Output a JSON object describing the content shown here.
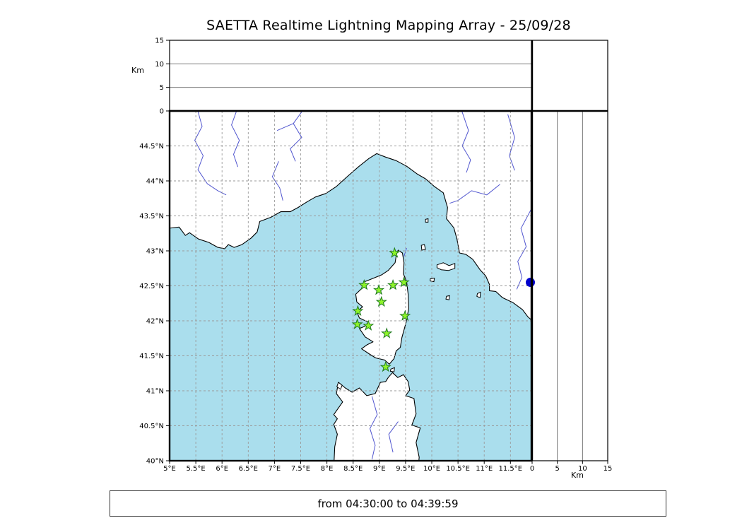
{
  "title": "SAETTA Realtime Lightning Mapping Array - 25/09/28",
  "footer": "from 04:30:00 to 04:39:59",
  "labels": {
    "km_top": "Km",
    "km_bottom": "Km"
  },
  "chart_data": {
    "type": "scatter",
    "title": "SAETTA Realtime Lightning Mapping Array - 25/09/28",
    "time_window": "from 04:30:00 to 04:39:59",
    "layout": "geographic map with empty altitude panels (lon-alt top, lat-alt right)",
    "map": {
      "lon_range": [
        5.0,
        11.9
      ],
      "lat_range": [
        40.0,
        45.0
      ],
      "grid": true,
      "lon_ticks": [
        {
          "v": 5.0,
          "label": "5°E"
        },
        {
          "v": 5.5,
          "label": "5.5°E"
        },
        {
          "v": 6.0,
          "label": "6°E"
        },
        {
          "v": 6.5,
          "label": "6.5°E"
        },
        {
          "v": 7.0,
          "label": "7°E"
        },
        {
          "v": 7.5,
          "label": "7.5°E"
        },
        {
          "v": 8.0,
          "label": "8°E"
        },
        {
          "v": 8.5,
          "label": "8.5°E"
        },
        {
          "v": 9.0,
          "label": "9°E"
        },
        {
          "v": 9.5,
          "label": "9.5°E"
        },
        {
          "v": 10.0,
          "label": "10°E"
        },
        {
          "v": 10.5,
          "label": "10.5°E"
        },
        {
          "v": 11.0,
          "label": "11°E"
        },
        {
          "v": 11.5,
          "label": "11.5°E"
        }
      ],
      "lat_ticks": [
        {
          "v": 40.0,
          "label": "40°N"
        },
        {
          "v": 40.5,
          "label": "40.5°N"
        },
        {
          "v": 41.0,
          "label": "41°N"
        },
        {
          "v": 41.5,
          "label": "41.5°N"
        },
        {
          "v": 42.0,
          "label": "42°N"
        },
        {
          "v": 42.5,
          "label": "42.5°N"
        },
        {
          "v": 43.0,
          "label": "43°N"
        },
        {
          "v": 43.5,
          "label": "43.5°N"
        },
        {
          "v": 44.0,
          "label": "44°N"
        },
        {
          "v": 44.5,
          "label": "44.5°N"
        }
      ],
      "colors": {
        "sea": "#aadeed",
        "land": "#ffffff",
        "coast": "#000000",
        "river": "#5156cf",
        "grid": "#9a9a9a"
      },
      "polygons": {
        "mainland": [
          [
            4.95,
            43.32
          ],
          [
            5.18,
            43.34
          ],
          [
            5.3,
            43.22
          ],
          [
            5.38,
            43.26
          ],
          [
            5.55,
            43.17
          ],
          [
            5.75,
            43.12
          ],
          [
            5.92,
            43.05
          ],
          [
            6.05,
            43.03
          ],
          [
            6.12,
            43.09
          ],
          [
            6.23,
            43.05
          ],
          [
            6.38,
            43.09
          ],
          [
            6.55,
            43.18
          ],
          [
            6.67,
            43.27
          ],
          [
            6.72,
            43.42
          ],
          [
            6.93,
            43.48
          ],
          [
            7.12,
            43.56
          ],
          [
            7.3,
            43.56
          ],
          [
            7.45,
            43.62
          ],
          [
            7.62,
            43.7
          ],
          [
            7.78,
            43.77
          ],
          [
            7.98,
            43.82
          ],
          [
            8.18,
            43.92
          ],
          [
            8.4,
            44.07
          ],
          [
            8.6,
            44.2
          ],
          [
            8.8,
            44.32
          ],
          [
            8.95,
            44.39
          ],
          [
            9.12,
            44.34
          ],
          [
            9.32,
            44.29
          ],
          [
            9.52,
            44.21
          ],
          [
            9.72,
            44.1
          ],
          [
            9.88,
            44.03
          ],
          [
            10.05,
            43.92
          ],
          [
            10.22,
            43.83
          ],
          [
            10.3,
            43.62
          ],
          [
            10.28,
            43.46
          ],
          [
            10.42,
            43.33
          ],
          [
            10.48,
            43.17
          ],
          [
            10.53,
            42.97
          ],
          [
            10.65,
            42.95
          ],
          [
            10.78,
            42.88
          ],
          [
            10.92,
            42.73
          ],
          [
            11.03,
            42.64
          ],
          [
            11.1,
            42.52
          ],
          [
            11.1,
            42.43
          ],
          [
            11.22,
            42.42
          ],
          [
            11.35,
            42.33
          ],
          [
            11.55,
            42.26
          ],
          [
            11.73,
            42.16
          ],
          [
            11.83,
            42.06
          ],
          [
            11.95,
            41.98
          ],
          [
            11.95,
            45.1
          ],
          [
            4.95,
            45.1
          ]
        ],
        "corsica": [
          [
            9.36,
            43.01
          ],
          [
            9.44,
            42.97
          ],
          [
            9.47,
            42.83
          ],
          [
            9.46,
            42.67
          ],
          [
            9.52,
            42.56
          ],
          [
            9.55,
            42.38
          ],
          [
            9.56,
            42.18
          ],
          [
            9.51,
            41.98
          ],
          [
            9.43,
            41.76
          ],
          [
            9.4,
            41.62
          ],
          [
            9.32,
            41.57
          ],
          [
            9.28,
            41.46
          ],
          [
            9.19,
            41.38
          ],
          [
            9.1,
            41.44
          ],
          [
            8.93,
            41.47
          ],
          [
            8.8,
            41.53
          ],
          [
            8.66,
            41.6
          ],
          [
            8.77,
            41.66
          ],
          [
            8.88,
            41.7
          ],
          [
            8.73,
            41.77
          ],
          [
            8.62,
            41.89
          ],
          [
            8.72,
            41.92
          ],
          [
            8.79,
            41.98
          ],
          [
            8.62,
            42.04
          ],
          [
            8.57,
            42.13
          ],
          [
            8.68,
            42.2
          ],
          [
            8.57,
            42.27
          ],
          [
            8.55,
            42.38
          ],
          [
            8.66,
            42.46
          ],
          [
            8.72,
            42.56
          ],
          [
            8.89,
            42.61
          ],
          [
            9.05,
            42.66
          ],
          [
            9.17,
            42.72
          ],
          [
            9.3,
            42.83
          ],
          [
            9.33,
            42.97
          ]
        ],
        "sardinia": [
          [
            8.13,
            39.9
          ],
          [
            8.15,
            40.2
          ],
          [
            8.2,
            40.38
          ],
          [
            8.13,
            40.52
          ],
          [
            8.2,
            40.6
          ],
          [
            8.13,
            40.66
          ],
          [
            8.3,
            40.84
          ],
          [
            8.18,
            40.96
          ],
          [
            8.22,
            41.12
          ],
          [
            8.35,
            41.04
          ],
          [
            8.48,
            40.98
          ],
          [
            8.62,
            41.04
          ],
          [
            8.76,
            40.93
          ],
          [
            8.92,
            40.96
          ],
          [
            9.02,
            41.12
          ],
          [
            9.12,
            41.13
          ],
          [
            9.17,
            41.19
          ],
          [
            9.25,
            41.26
          ],
          [
            9.35,
            41.19
          ],
          [
            9.46,
            41.23
          ],
          [
            9.55,
            41.13
          ],
          [
            9.58,
            41.01
          ],
          [
            9.5,
            40.93
          ],
          [
            9.66,
            40.89
          ],
          [
            9.7,
            40.67
          ],
          [
            9.62,
            40.51
          ],
          [
            9.78,
            40.47
          ],
          [
            9.7,
            40.26
          ],
          [
            9.76,
            40.05
          ],
          [
            9.74,
            39.9
          ]
        ],
        "islands": [
          [
            [
              10.1,
              42.8
            ],
            [
              10.22,
              42.83
            ],
            [
              10.33,
              42.79
            ],
            [
              10.44,
              42.82
            ],
            [
              10.44,
              42.75
            ],
            [
              10.32,
              42.72
            ],
            [
              10.18,
              42.73
            ],
            [
              10.1,
              42.76
            ]
          ],
          [
            [
              9.8,
              43.08
            ],
            [
              9.86,
              43.09
            ],
            [
              9.88,
              43.02
            ],
            [
              9.81,
              43.01
            ]
          ],
          [
            [
              9.88,
              43.45
            ],
            [
              9.93,
              43.46
            ],
            [
              9.93,
              43.41
            ],
            [
              9.88,
              43.41
            ]
          ],
          [
            [
              9.97,
              42.6
            ],
            [
              10.05,
              42.61
            ],
            [
              10.04,
              42.56
            ],
            [
              9.97,
              42.57
            ]
          ],
          [
            [
              10.28,
              42.35
            ],
            [
              10.34,
              42.36
            ],
            [
              10.33,
              42.3
            ],
            [
              10.27,
              42.31
            ]
          ],
          [
            [
              10.87,
              42.39
            ],
            [
              10.93,
              42.41
            ],
            [
              10.92,
              42.33
            ],
            [
              10.86,
              42.35
            ]
          ],
          [
            [
              9.22,
              41.31
            ],
            [
              9.29,
              41.33
            ],
            [
              9.28,
              41.27
            ],
            [
              9.21,
              41.28
            ]
          ],
          [
            [
              8.22,
              41.12
            ],
            [
              8.29,
              41.08
            ],
            [
              8.26,
              41.02
            ],
            [
              8.19,
              41.06
            ]
          ]
        ]
      },
      "rivers": [
        [
          [
            5.52,
            45.05
          ],
          [
            5.62,
            44.78
          ],
          [
            5.48,
            44.58
          ],
          [
            5.64,
            44.36
          ],
          [
            5.54,
            44.16
          ],
          [
            5.72,
            43.96
          ],
          [
            5.92,
            43.86
          ],
          [
            6.08,
            43.8
          ]
        ],
        [
          [
            6.3,
            45.05
          ],
          [
            6.18,
            44.8
          ],
          [
            6.33,
            44.58
          ],
          [
            6.22,
            44.38
          ],
          [
            6.3,
            44.2
          ]
        ],
        [
          [
            7.58,
            45.05
          ],
          [
            7.36,
            44.82
          ],
          [
            7.52,
            44.62
          ],
          [
            7.3,
            44.46
          ],
          [
            7.4,
            44.28
          ]
        ],
        [
          [
            7.05,
            44.72
          ],
          [
            7.36,
            44.82
          ]
        ],
        [
          [
            10.55,
            45.05
          ],
          [
            10.7,
            44.72
          ],
          [
            10.58,
            44.5
          ],
          [
            10.74,
            44.3
          ],
          [
            10.66,
            44.12
          ]
        ],
        [
          [
            11.3,
            43.95
          ],
          [
            11.05,
            43.8
          ],
          [
            10.76,
            43.86
          ],
          [
            10.5,
            43.72
          ],
          [
            10.34,
            43.68
          ]
        ],
        [
          [
            11.9,
            43.6
          ],
          [
            11.7,
            43.32
          ],
          [
            11.8,
            43.06
          ],
          [
            11.64,
            42.85
          ],
          [
            11.72,
            42.62
          ],
          [
            11.62,
            42.45
          ]
        ],
        [
          [
            11.45,
            44.95
          ],
          [
            11.58,
            44.62
          ],
          [
            11.48,
            44.36
          ],
          [
            11.58,
            44.15
          ]
        ],
        [
          [
            7.08,
            44.28
          ],
          [
            6.96,
            44.06
          ],
          [
            7.1,
            43.9
          ],
          [
            7.16,
            43.72
          ]
        ],
        [
          [
            8.86,
            40.92
          ],
          [
            8.96,
            40.66
          ],
          [
            8.82,
            40.46
          ],
          [
            8.92,
            40.22
          ],
          [
            8.86,
            40.02
          ]
        ],
        [
          [
            9.36,
            40.56
          ],
          [
            9.18,
            40.38
          ],
          [
            9.26,
            40.12
          ]
        ],
        [
          [
            9.52,
            43.04
          ],
          [
            9.47,
            42.92
          ]
        ]
      ]
    },
    "alt_axis": {
      "label": "Km",
      "range": [
        0,
        15
      ],
      "ticks": [
        {
          "v": 0,
          "label": "0"
        },
        {
          "v": 5,
          "label": "5"
        },
        {
          "v": 10,
          "label": "10"
        },
        {
          "v": 15,
          "label": "15"
        }
      ],
      "gridlines": [
        5,
        10
      ]
    },
    "stations": {
      "symbol": "star",
      "fill": "#8ef42a",
      "edge": "#1f7a1f",
      "points": [
        [
          9.29,
          42.97
        ],
        [
          8.71,
          42.51
        ],
        [
          8.99,
          42.44
        ],
        [
          9.26,
          42.51
        ],
        [
          9.47,
          42.55
        ],
        [
          9.04,
          42.27
        ],
        [
          8.59,
          42.14
        ],
        [
          9.49,
          42.07
        ],
        [
          8.58,
          41.95
        ],
        [
          8.79,
          41.93
        ],
        [
          9.14,
          41.82
        ],
        [
          9.12,
          41.34
        ]
      ]
    },
    "event_dot": {
      "lon": 11.88,
      "lat": 42.55,
      "radius": 6.5,
      "color": "#0000cd"
    },
    "panel_points": {
      "lon_alt": [],
      "lat_alt": []
    }
  }
}
